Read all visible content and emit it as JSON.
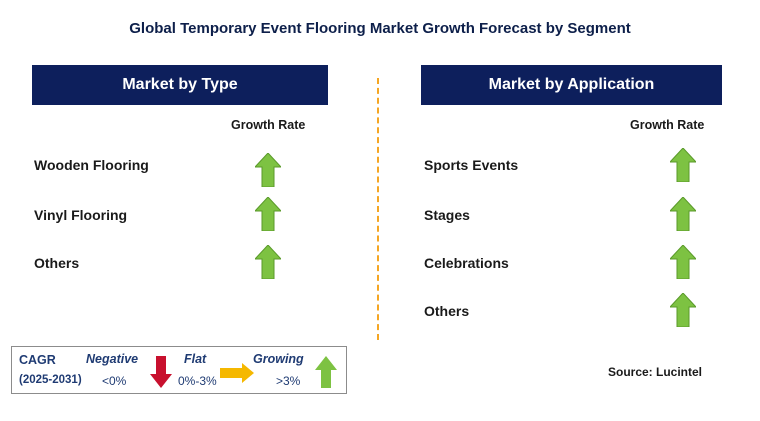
{
  "title": "Global Temporary Event Flooring Market Growth Forecast by Segment",
  "left_panel": {
    "header": "Market by Type",
    "growth_label": "Growth Rate",
    "rows": [
      {
        "label": "Wooden Flooring",
        "trend": "growing"
      },
      {
        "label": "Vinyl Flooring",
        "trend": "growing"
      },
      {
        "label": "Others",
        "trend": "growing"
      }
    ]
  },
  "right_panel": {
    "header": "Market by Application",
    "growth_label": "Growth Rate",
    "rows": [
      {
        "label": "Sports Events",
        "trend": "growing"
      },
      {
        "label": "Stages",
        "trend": "growing"
      },
      {
        "label": "Celebrations",
        "trend": "growing"
      },
      {
        "label": "Others",
        "trend": "growing"
      }
    ]
  },
  "legend": {
    "cagr": "CAGR",
    "period": "(2025-2031)",
    "negative_label": "Negative",
    "negative_range": "<0%",
    "flat_label": "Flat",
    "flat_range": "0%-3%",
    "growing_label": "Growing",
    "growing_range": ">3%"
  },
  "source": "Source: Lucintel",
  "colors": {
    "header_bg": "#0d1f5c",
    "growing": "#7dc242",
    "negative": "#c8102e",
    "flat": "#f5b800",
    "divider": "#f5a623"
  }
}
